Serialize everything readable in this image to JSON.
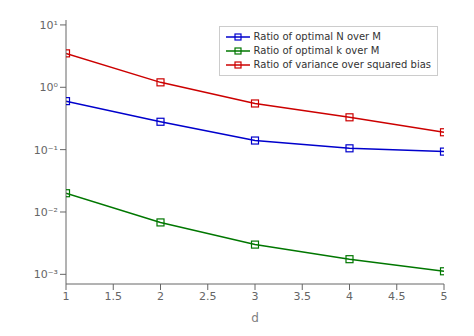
{
  "chart_data": {
    "type": "line",
    "x": [
      1,
      2,
      3,
      4,
      5
    ],
    "xlabel": "d",
    "xlim": [
      1,
      5
    ],
    "xticks": [
      1,
      1.5,
      2,
      2.5,
      3,
      3.5,
      4,
      4.5,
      5
    ],
    "ylim": [
      0.0007,
      12
    ],
    "yticks": [
      {
        "value": 0.001,
        "label": "10⁻³"
      },
      {
        "value": 0.01,
        "label": "10⁻²"
      },
      {
        "value": 0.1,
        "label": "10⁻¹"
      },
      {
        "value": 1,
        "label": "10⁰"
      },
      {
        "value": 10,
        "label": "10¹"
      }
    ],
    "log": "y",
    "grid": false,
    "legend": "upper right",
    "marker": "square",
    "series": [
      {
        "name": "Ratio of optimal N over M",
        "color": "#0000cc",
        "values": [
          0.6,
          0.28,
          0.14,
          0.105,
          0.093
        ]
      },
      {
        "name": "Ratio of optimal k over M",
        "color": "#007700",
        "values": [
          0.02,
          0.0068,
          0.003,
          0.00175,
          0.00112
        ]
      },
      {
        "name": "Ratio of variance over squared bias",
        "color": "#cc0000",
        "values": [
          3.5,
          1.2,
          0.55,
          0.33,
          0.19
        ]
      }
    ]
  }
}
